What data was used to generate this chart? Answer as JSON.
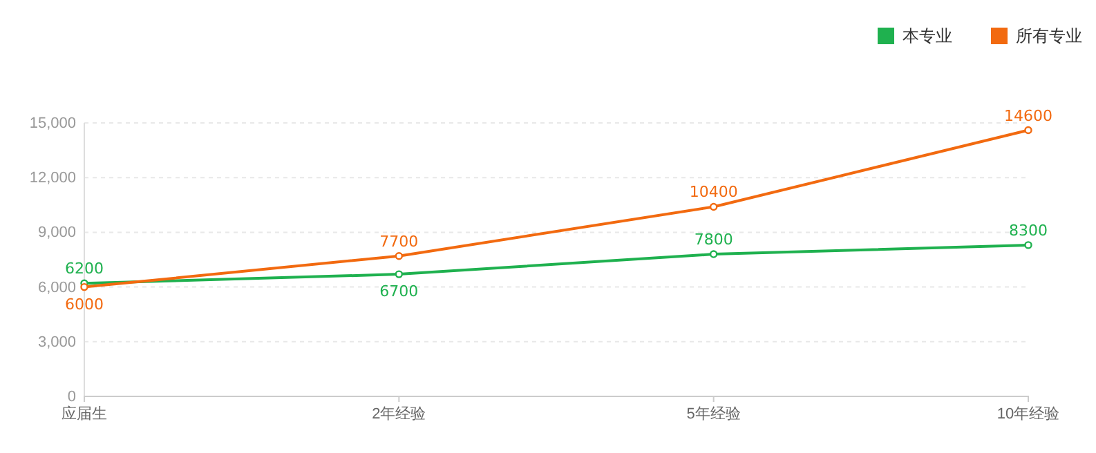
{
  "chart_data": {
    "type": "line",
    "categories": [
      "应届生",
      "2年经验",
      "5年经验",
      "10年经验"
    ],
    "series": [
      {
        "name": "本专业",
        "color": "#1fb14f",
        "values": [
          6200,
          6700,
          7800,
          8300
        ]
      },
      {
        "name": "所有专业",
        "color": "#f26a10",
        "values": [
          6000,
          7700,
          10400,
          14600
        ]
      }
    ],
    "ylim": [
      0,
      15000
    ],
    "yticks": [
      {
        "value": 0,
        "label": "0"
      },
      {
        "value": 3000,
        "label": "3,000"
      },
      {
        "value": 6000,
        "label": "6,000"
      },
      {
        "value": 9000,
        "label": "9,000"
      },
      {
        "value": 12000,
        "label": "12,000"
      },
      {
        "value": 15000,
        "label": "15,000"
      }
    ],
    "grid": "y",
    "legend": "top right",
    "marker": "circle",
    "data_labels": true
  }
}
